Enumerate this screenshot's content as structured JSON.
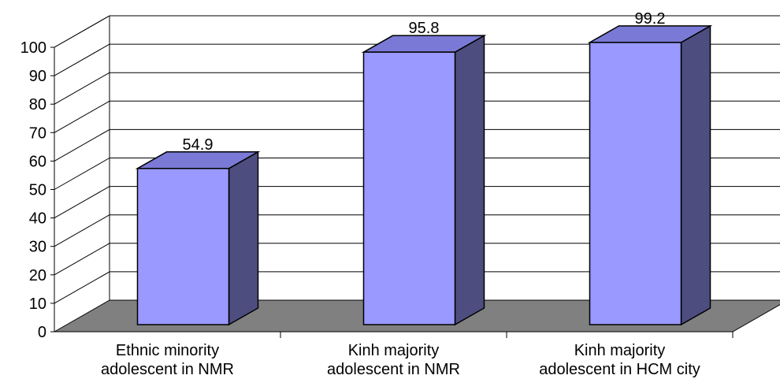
{
  "chart_data": {
    "type": "bar",
    "style": "3d",
    "categories": [
      [
        "Ethnic minority",
        "adolescent in NMR"
      ],
      [
        "Kinh majority",
        "adolescent in NMR"
      ],
      [
        "Kinh majority",
        "adolescent in HCM city"
      ]
    ],
    "values": [
      54.9,
      95.8,
      99.2
    ],
    "value_labels": [
      "54.9",
      "95.8",
      "99.2"
    ],
    "y_ticks": [
      "0",
      "10",
      "20",
      "30",
      "40",
      "50",
      "60",
      "70",
      "80",
      "90",
      "100"
    ],
    "ylim": [
      0,
      100
    ],
    "grid": true,
    "legend": "none",
    "colors": {
      "bar_front": "#9999ff",
      "bar_top": "#7a7ad6",
      "bar_side": "#4d4d80",
      "floor": "#808080",
      "gridline": "#000000"
    }
  }
}
